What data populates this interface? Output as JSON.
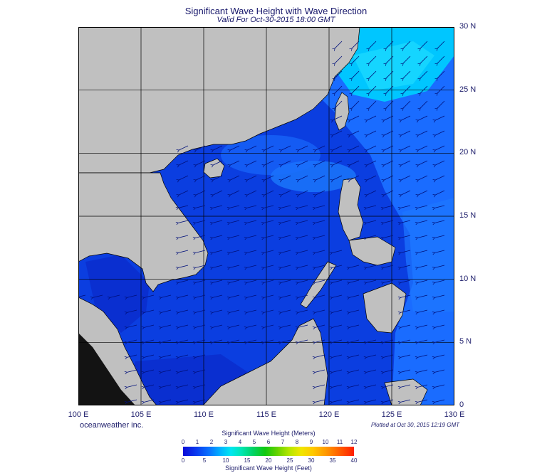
{
  "title": "Significant Wave Height with Wave Direction",
  "subtitle": "Valid For Oct-30-2015 18:00 GMT",
  "credit": "oceanweather inc.",
  "plotted": "Plotted at Oct 30, 2015 12:19 GMT",
  "map": {
    "lon_range": [
      100,
      130
    ],
    "lat_range": [
      0,
      30
    ],
    "lon_ticks": [
      {
        "value": 100,
        "label": "100 E"
      },
      {
        "value": 105,
        "label": "105 E"
      },
      {
        "value": 110,
        "label": "110 E"
      },
      {
        "value": 115,
        "label": "115 E"
      },
      {
        "value": 120,
        "label": "120 E"
      },
      {
        "value": 125,
        "label": "125 E"
      },
      {
        "value": 130,
        "label": "130 E"
      }
    ],
    "lat_ticks": [
      {
        "value": 30,
        "label": "30 N"
      },
      {
        "value": 25,
        "label": "25 N"
      },
      {
        "value": 20,
        "label": "20 N"
      },
      {
        "value": 15,
        "label": "15 N"
      },
      {
        "value": 10,
        "label": "10 N"
      },
      {
        "value": 5,
        "label": "5 N"
      },
      {
        "value": 0,
        "label": "0"
      }
    ],
    "colors": {
      "land": "#c0c0c0",
      "sea_low": "#0b2fd6",
      "sea_mid": "#1060ff",
      "sea_high": "#00c8ff",
      "grid": "#000000",
      "arrow": "#00107a"
    }
  },
  "legend": {
    "top_title": "Significant Wave Height (Meters)",
    "bottom_title": "Significant Wave Height (Feet)",
    "meter_ticks": [
      "0",
      "1",
      "2",
      "3",
      "4",
      "5",
      "6",
      "7",
      "8",
      "9",
      "10",
      "11",
      "12"
    ],
    "feet_ticks": [
      "0",
      "5",
      "10",
      "15",
      "20",
      "25",
      "30",
      "35",
      "40"
    ]
  }
}
